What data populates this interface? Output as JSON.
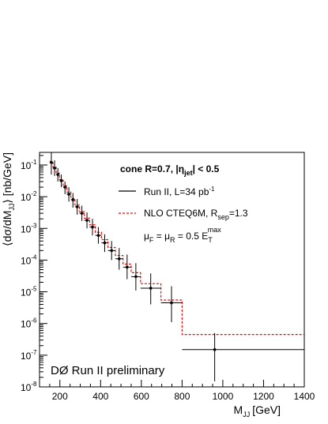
{
  "chart_data": {
    "type": "scatter",
    "title": "",
    "xlabel": "M",
    "xlabel_sub": "JJ",
    "xlabel_unit": "[GeV]",
    "ylabel": "⟨dσ/dM",
    "ylabel_sub": "JJ",
    "ylabel_tail": "⟩ [nb/GeV]",
    "xlim": [
      100,
      1400
    ],
    "ylim": [
      1e-08,
      0.25
    ],
    "yscale": "log",
    "x_ticks": [
      200,
      400,
      600,
      800,
      1000,
      1200,
      1400
    ],
    "x_tick_labels": [
      "200",
      "400",
      "600",
      "800",
      "1000",
      "1200",
      "1400"
    ],
    "y_ticks": [
      {
        "value": 1e-08,
        "base": "10",
        "exp": "-8"
      },
      {
        "value": 1e-07,
        "base": "10",
        "exp": "-7"
      },
      {
        "value": 1e-06,
        "base": "10",
        "exp": "-6"
      },
      {
        "value": 1e-05,
        "base": "10",
        "exp": "-5"
      },
      {
        "value": 0.0001,
        "base": "10",
        "exp": "-4"
      },
      {
        "value": 0.001,
        "base": "10",
        "exp": "-3"
      },
      {
        "value": 0.01,
        "base": "10",
        "exp": "-2"
      },
      {
        "value": 0.1,
        "base": "10",
        "exp": "-1"
      }
    ],
    "series": [
      {
        "name": "Run II, L=34 pb",
        "name_sup": "-1",
        "style": "data",
        "color": "#000000",
        "points": [
          {
            "x": 158,
            "xlo": 150,
            "xhi": 166,
            "y": 0.12,
            "ylo": 0.05,
            "yhi": 0.25
          },
          {
            "x": 174,
            "xlo": 166,
            "xhi": 182,
            "y": 0.08,
            "ylo": 0.045,
            "yhi": 0.14
          },
          {
            "x": 190,
            "xlo": 182,
            "xhi": 198,
            "y": 0.05,
            "ylo": 0.03,
            "yhi": 0.08
          },
          {
            "x": 207,
            "xlo": 198,
            "xhi": 216,
            "y": 0.032,
            "ylo": 0.02,
            "yhi": 0.05
          },
          {
            "x": 225,
            "xlo": 216,
            "xhi": 234,
            "y": 0.02,
            "ylo": 0.012,
            "yhi": 0.03
          },
          {
            "x": 244,
            "xlo": 234,
            "xhi": 254,
            "y": 0.012,
            "ylo": 0.007,
            "yhi": 0.02
          },
          {
            "x": 264,
            "xlo": 254,
            "xhi": 274,
            "y": 0.008,
            "ylo": 0.0045,
            "yhi": 0.013
          },
          {
            "x": 285,
            "xlo": 274,
            "xhi": 296,
            "y": 0.0048,
            "ylo": 0.0027,
            "yhi": 0.0085
          },
          {
            "x": 308,
            "xlo": 296,
            "xhi": 320,
            "y": 0.003,
            "ylo": 0.0017,
            "yhi": 0.0052
          },
          {
            "x": 333,
            "xlo": 320,
            "xhi": 346,
            "y": 0.0018,
            "ylo": 0.001,
            "yhi": 0.0032
          },
          {
            "x": 360,
            "xlo": 346,
            "xhi": 374,
            "y": 0.0011,
            "ylo": 0.0006,
            "yhi": 0.002
          },
          {
            "x": 389,
            "xlo": 374,
            "xhi": 404,
            "y": 0.0006,
            "ylo": 0.00033,
            "yhi": 0.0011
          },
          {
            "x": 420,
            "xlo": 404,
            "xhi": 436,
            "y": 0.00035,
            "ylo": 0.00018,
            "yhi": 0.00065
          },
          {
            "x": 454,
            "xlo": 436,
            "xhi": 472,
            "y": 0.0002,
            "ylo": 0.0001,
            "yhi": 0.0004
          },
          {
            "x": 491,
            "xlo": 472,
            "xhi": 510,
            "y": 0.00011,
            "ylo": 5e-05,
            "yhi": 0.00024
          },
          {
            "x": 530,
            "xlo": 510,
            "xhi": 550,
            "y": 6e-05,
            "ylo": 2.5e-05,
            "yhi": 0.00015
          },
          {
            "x": 573,
            "xlo": 550,
            "xhi": 596,
            "y": 3e-05,
            "ylo": 1.1e-05,
            "yhi": 8e-05
          },
          {
            "x": 646,
            "xlo": 596,
            "xhi": 696,
            "y": 1.3e-05,
            "ylo": 4e-06,
            "yhi": 3.8e-05
          },
          {
            "x": 748,
            "xlo": 696,
            "xhi": 800,
            "y": 4.5e-06,
            "ylo": 1.1e-06,
            "yhi": 1.5e-05
          },
          {
            "x": 960,
            "xlo": 800,
            "xhi": 1400,
            "y": 1.5e-07,
            "ylo": 1.5e-08,
            "yhi": 5e-07
          }
        ]
      },
      {
        "name": "NLO CTEQ6M, R",
        "name_sub": "sep",
        "name_tail": "=1.3",
        "style": "dashed-step",
        "color": "#ff0000",
        "bins": [
          {
            "xlo": 150,
            "xhi": 166,
            "y": 0.13
          },
          {
            "xlo": 166,
            "xhi": 182,
            "y": 0.085
          },
          {
            "xlo": 182,
            "xhi": 198,
            "y": 0.055
          },
          {
            "xlo": 198,
            "xhi": 216,
            "y": 0.035
          },
          {
            "xlo": 216,
            "xhi": 234,
            "y": 0.022
          },
          {
            "xlo": 234,
            "xhi": 254,
            "y": 0.014
          },
          {
            "xlo": 254,
            "xhi": 274,
            "y": 0.0088
          },
          {
            "xlo": 274,
            "xhi": 296,
            "y": 0.0055
          },
          {
            "xlo": 296,
            "xhi": 320,
            "y": 0.0034
          },
          {
            "xlo": 320,
            "xhi": 346,
            "y": 0.0021
          },
          {
            "xlo": 346,
            "xhi": 374,
            "y": 0.0013
          },
          {
            "xlo": 374,
            "xhi": 404,
            "y": 0.00075
          },
          {
            "xlo": 404,
            "xhi": 436,
            "y": 0.00044
          },
          {
            "xlo": 436,
            "xhi": 472,
            "y": 0.00025
          },
          {
            "xlo": 472,
            "xhi": 510,
            "y": 0.00014
          },
          {
            "xlo": 510,
            "xhi": 550,
            "y": 7.5e-05
          },
          {
            "xlo": 550,
            "xhi": 596,
            "y": 4e-05
          },
          {
            "xlo": 596,
            "xhi": 696,
            "y": 1.8e-05
          },
          {
            "xlo": 696,
            "xhi": 800,
            "y": 5.5e-06
          },
          {
            "xlo": 800,
            "xhi": 1400,
            "y": 4.5e-07
          }
        ]
      }
    ],
    "annotations": {
      "cut": {
        "text": "cone R=0.7, |η",
        "sub": "jet",
        "tail": "| < 0.5"
      },
      "scale": {
        "a": "μ",
        "a_sub": "F",
        "b": " = μ",
        "b_sub": "R",
        "c": " = 0.5 E",
        "c_sub": "T",
        "c_sup": "max"
      },
      "watermark": "DØ Run II preliminary"
    },
    "legend_position": "top-right",
    "grid": false
  }
}
